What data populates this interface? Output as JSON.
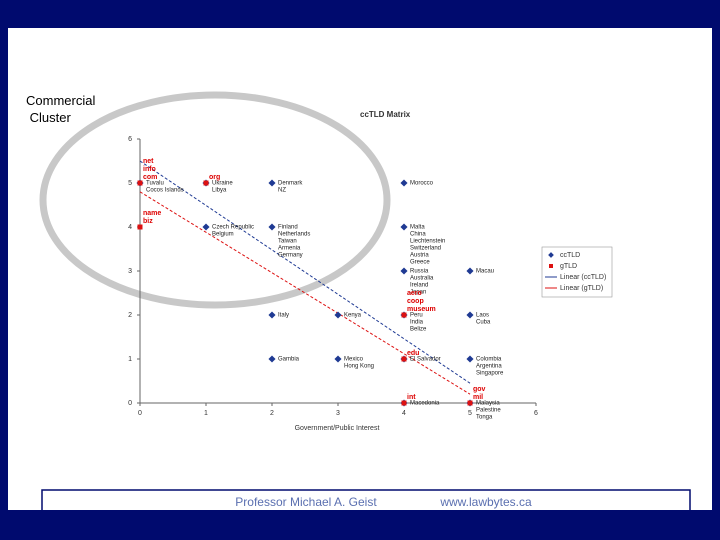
{
  "chart_data": {
    "type": "scatter",
    "annotation": "Commercial Cluster",
    "title": "ccTLD Matrix",
    "x_label": "Government/Public Interest",
    "xlim": [
      0,
      6
    ],
    "xticks": [
      0,
      1,
      2,
      3,
      4,
      5,
      6
    ],
    "ylim": [
      0,
      6
    ],
    "yticks": [
      0,
      1,
      2,
      3,
      4,
      5,
      6
    ],
    "series": [
      {
        "name": "ccTLD",
        "color": "#1f3a93",
        "marker": "diamond",
        "points": [
          {
            "x": 0,
            "y": 5,
            "labels": [
              "Tuvalu",
              "Cocos Islands"
            ]
          },
          {
            "x": 1,
            "y": 5,
            "labels": [
              "Ukraine",
              "Libya"
            ]
          },
          {
            "x": 2,
            "y": 5,
            "labels": [
              "Denmark",
              "NZ"
            ]
          },
          {
            "x": 1,
            "y": 4,
            "labels": [
              "Czech Republic",
              "Belgium"
            ]
          },
          {
            "x": 2,
            "y": 4,
            "labels": [
              "Finland",
              "Netherlands",
              "Taiwan",
              "Armenia",
              "Germany"
            ]
          },
          {
            "x": 4,
            "y": 5,
            "labels": [
              "Morocco"
            ]
          },
          {
            "x": 4,
            "y": 4,
            "labels": [
              "Malta",
              "China",
              "Liechtenstein",
              "Switzerland",
              "Austria",
              "Greece"
            ]
          },
          {
            "x": 4,
            "y": 3,
            "labels": [
              "Russia",
              "Australia",
              "Ireland",
              "Japan"
            ]
          },
          {
            "x": 5,
            "y": 3,
            "labels": [
              "Macau"
            ]
          },
          {
            "x": 2,
            "y": 2,
            "labels": [
              "Italy"
            ]
          },
          {
            "x": 3,
            "y": 2,
            "labels": [
              "Kenya"
            ]
          },
          {
            "x": 4,
            "y": 2,
            "labels": [
              "Peru",
              "India",
              "Belize"
            ]
          },
          {
            "x": 5,
            "y": 2,
            "labels": [
              "Laos",
              "Cuba"
            ]
          },
          {
            "x": 5,
            "y": 1,
            "labels": [
              "Colombia",
              "Argentina",
              "Singapore"
            ]
          },
          {
            "x": 2,
            "y": 1,
            "labels": [
              "Gambia"
            ]
          },
          {
            "x": 3,
            "y": 1,
            "labels": [
              "Mexico",
              "Hong Kong"
            ]
          },
          {
            "x": 4,
            "y": 1,
            "labels": [
              "El Salvador"
            ]
          },
          {
            "x": 4,
            "y": 0,
            "labels": [
              "Macedonia"
            ]
          },
          {
            "x": 5,
            "y": 0,
            "labels": [
              "Malaysia",
              "Palestine",
              "Tonga"
            ]
          }
        ]
      },
      {
        "name": "gTLD",
        "color": "#dd1111",
        "marker": "square",
        "points": [
          {
            "x": 0,
            "y": 5,
            "labels": [
              "net",
              "info",
              "com"
            ]
          },
          {
            "x": 1,
            "y": 5,
            "labels": [
              "org"
            ]
          },
          {
            "x": 0,
            "y": 4,
            "labels": [
              "name",
              "biz"
            ]
          },
          {
            "x": 4,
            "y": 2,
            "labels": [
              "aero",
              "coop",
              "museum"
            ]
          },
          {
            "x": 4,
            "y": 1,
            "labels": [
              "edu"
            ]
          },
          {
            "x": 4,
            "y": 0,
            "labels": [
              "int"
            ]
          },
          {
            "x": 5,
            "y": 0,
            "labels": [
              "gov",
              "mil"
            ]
          }
        ]
      }
    ],
    "trendlines": [
      {
        "name": "Linear (ccTLD)",
        "color": "#1f3a93",
        "x": [
          0,
          5
        ],
        "y": [
          5.5,
          0.45
        ]
      },
      {
        "name": "Linear (gTLD)",
        "color": "#dd1111",
        "x": [
          0,
          5
        ],
        "y": [
          4.8,
          0.2
        ]
      }
    ]
  },
  "footer": {
    "author": "Professor Michael A. Geist",
    "url": "www.lawbytes.ca"
  }
}
